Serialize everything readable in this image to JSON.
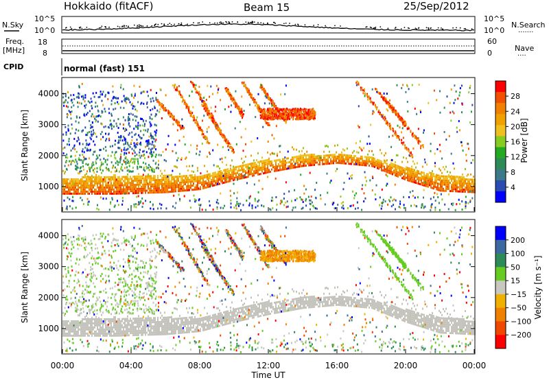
{
  "header": {
    "title_left": "Hokkaido (fitACF)",
    "title_center": "Beam 15",
    "title_right": "25/Sep/2012"
  },
  "side_labels": {
    "nsky": "N.Sky",
    "nsearch": "N.Search",
    "freq_line1": "Freq.",
    "freq_line2": "[MHz]",
    "nave": "Nave",
    "cpid": "CPID",
    "dotted_marker": "·······",
    "dotted_marker_short": "····"
  },
  "nsky_panel": {
    "ytick_top": "10^5",
    "ytick_bottom": "10^0",
    "right_tick_top": "10^5",
    "right_tick_bottom": "10^0"
  },
  "freq_panel": {
    "ytick_top": "18",
    "ytick_bottom": "8",
    "right_tick_top": "60",
    "right_tick_bottom": "0"
  },
  "cpid_panel": {
    "text": "normal (fast) 151"
  },
  "colors": {
    "power": [
      "#0000ff",
      "#2a4bb0",
      "#3c7a8a",
      "#2e8b57",
      "#22aa22",
      "#88cc22",
      "#f0c020",
      "#f0a000",
      "#f08000",
      "#f05000",
      "#ff0000"
    ],
    "velocity": [
      "#ff0000",
      "#f04800",
      "#f08000",
      "#f0b000",
      "#c8c8c0",
      "#66cc22",
      "#2e8b57",
      "#3c6aa0",
      "#0000ff"
    ],
    "ground_scatter": "#c4c4bc"
  },
  "chart_data": [
    {
      "type": "heatmap",
      "name": "power",
      "ylabel": "Slant Range [km]",
      "yticks": [
        "1000",
        "2000",
        "3000",
        "4000"
      ],
      "ylim": [
        200,
        4500
      ],
      "xlim": [
        0,
        24
      ],
      "colorbar": {
        "label": "Power [dB]",
        "ticks": [
          "4",
          "8",
          "12",
          "16",
          "20",
          "24",
          "28"
        ],
        "range": [
          0,
          32
        ]
      },
      "main_echo_band_km": [
        {
          "ut": 0,
          "lower": 800,
          "upper": 1300
        },
        {
          "ut": 3,
          "lower": 800,
          "upper": 1400
        },
        {
          "ut": 6,
          "lower": 850,
          "upper": 1400
        },
        {
          "ut": 8,
          "lower": 950,
          "upper": 1400
        },
        {
          "ut": 10,
          "lower": 1250,
          "upper": 1650
        },
        {
          "ut": 12,
          "lower": 1500,
          "upper": 1900
        },
        {
          "ut": 14,
          "lower": 1700,
          "upper": 2050
        },
        {
          "ut": 16,
          "lower": 1800,
          "upper": 2100
        },
        {
          "ut": 18,
          "lower": 1700,
          "upper": 2000
        },
        {
          "ut": 20,
          "lower": 1250,
          "upper": 1650
        },
        {
          "ut": 22,
          "lower": 900,
          "upper": 1400
        },
        {
          "ut": 24,
          "lower": 850,
          "upper": 1300
        }
      ]
    },
    {
      "type": "heatmap",
      "name": "velocity",
      "ylabel": "Slant Range [km]",
      "xlabel": "Time UT",
      "yticks": [
        "1000",
        "2000",
        "3000",
        "4000"
      ],
      "xticks": [
        "00:00",
        "04:00",
        "08:00",
        "12:00",
        "16:00",
        "20:00",
        "00:00"
      ],
      "ylim": [
        200,
        4500
      ],
      "xlim": [
        0,
        24
      ],
      "colorbar": {
        "label": "Velocity [m s⁻¹]",
        "ticks": [
          "200",
          "100",
          "50",
          "15",
          "−15",
          "−50",
          "−100",
          "−200"
        ],
        "range": [
          -250,
          250
        ]
      }
    }
  ]
}
